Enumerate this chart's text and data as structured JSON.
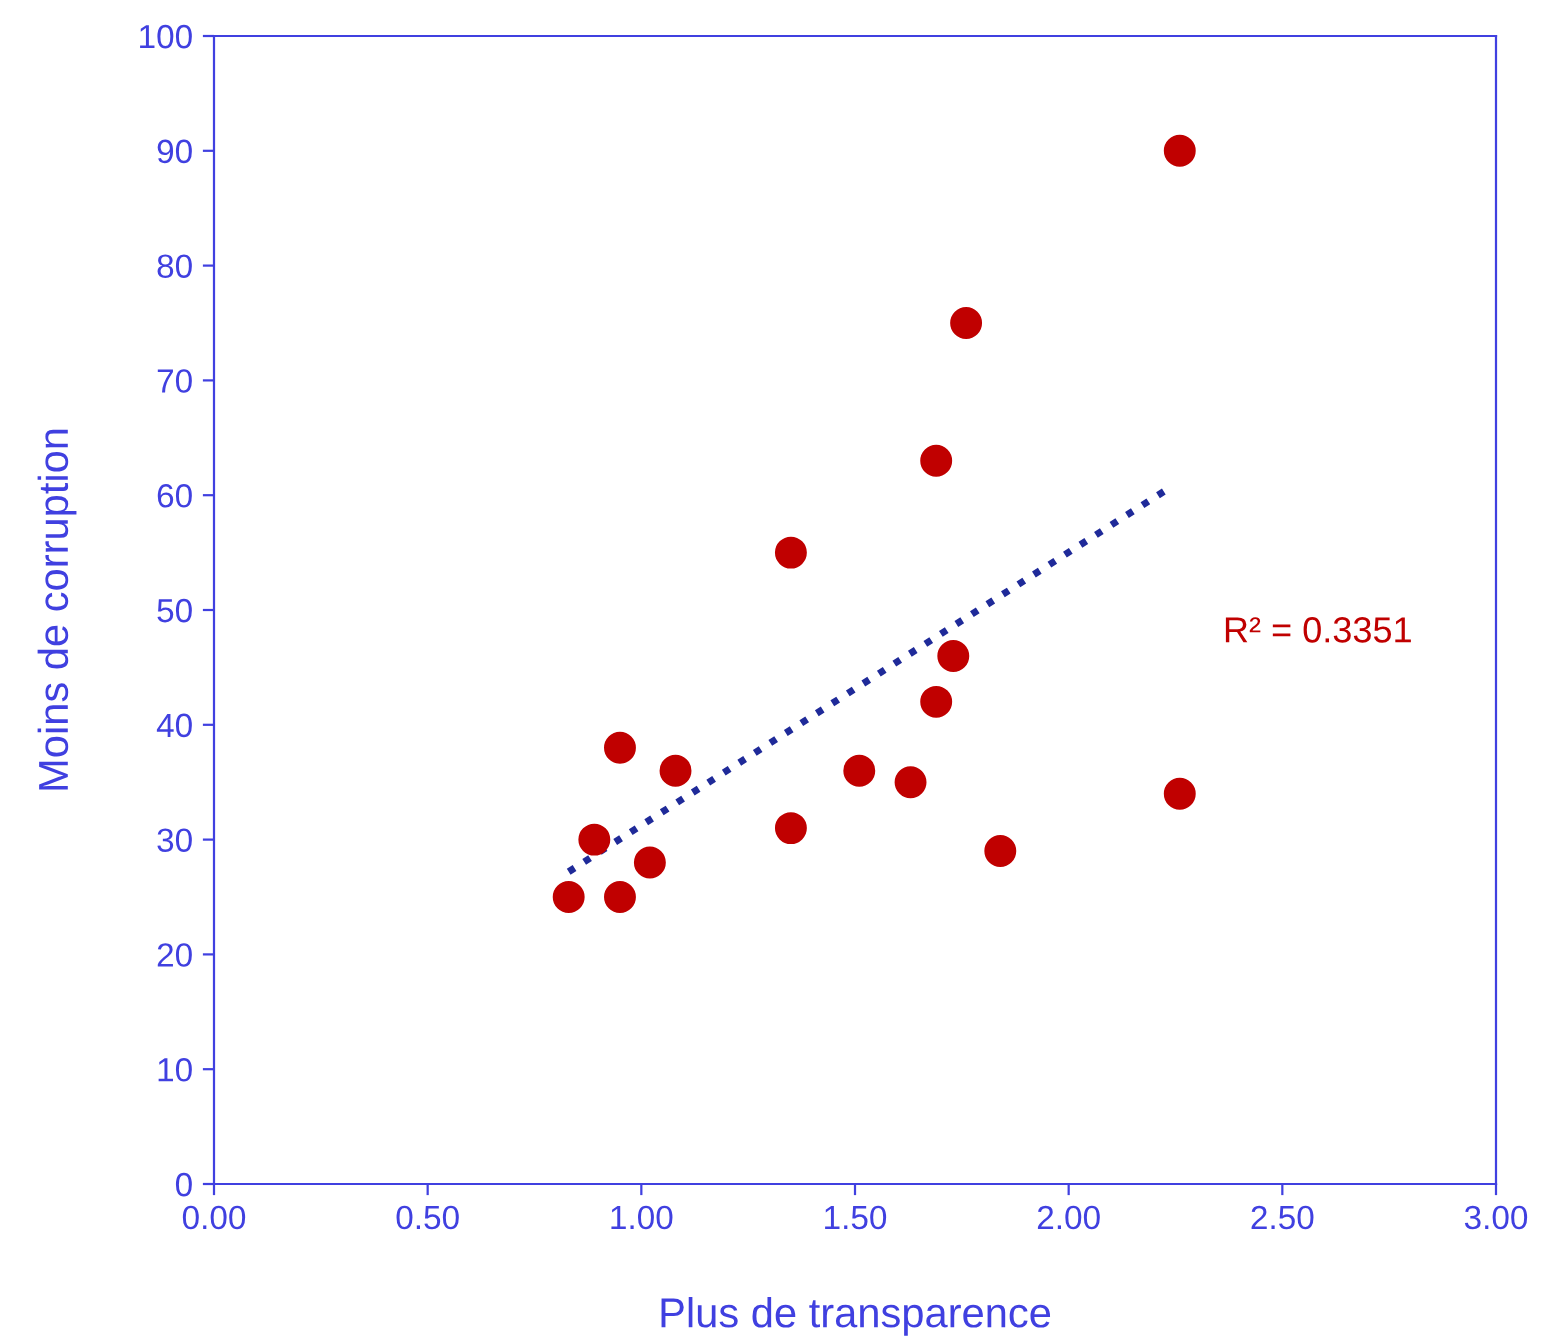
{
  "chart_data": {
    "type": "scatter",
    "xlabel": "Plus de transparence",
    "ylabel": "Moins de corruption",
    "series": [
      {
        "type": "scatter",
        "color": "#c00000",
        "marker": "circle",
        "x": [
          0.83,
          0.89,
          0.95,
          0.95,
          1.02,
          1.08,
          1.35,
          1.35,
          1.51,
          1.63,
          1.69,
          1.69,
          1.73,
          1.76,
          1.84,
          2.26,
          2.26
        ],
        "values": [
          25,
          30,
          38,
          25,
          28,
          36,
          55,
          31,
          36,
          35,
          63,
          42,
          46,
          75,
          29,
          90,
          34
        ]
      },
      {
        "type": "line",
        "color": "#1f2a99",
        "line_style": "dotted",
        "marker": "none",
        "x": [
          0.83,
          2.23
        ],
        "values": [
          27.2,
          60.5
        ]
      }
    ],
    "xlim": [
      0,
      3
    ],
    "xticks": [
      {
        "value": 0,
        "label": "0.00"
      },
      {
        "value": 0.5,
        "label": "0.50"
      },
      {
        "value": 1,
        "label": "1.00"
      },
      {
        "value": 1.5,
        "label": "1.50"
      },
      {
        "value": 2,
        "label": "2.00"
      },
      {
        "value": 2.5,
        "label": "2.50"
      },
      {
        "value": 3,
        "label": "3.00"
      }
    ],
    "ylim": [
      0,
      100
    ],
    "yticks": [
      0,
      10,
      20,
      30,
      40,
      50,
      60,
      70,
      80,
      90,
      100
    ],
    "grid": false,
    "legend": false,
    "annotations": [
      "R² = 0.3351"
    ]
  }
}
